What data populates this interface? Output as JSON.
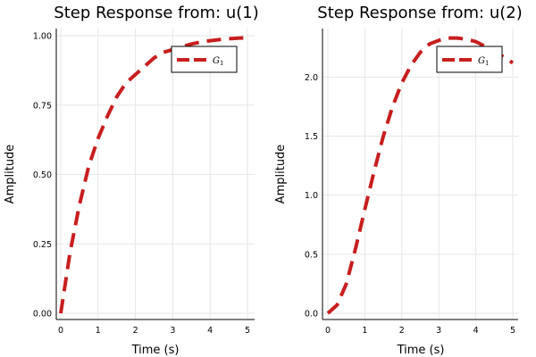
{
  "chart_data": [
    {
      "type": "line",
      "title": "Step Response from: u(1)",
      "xlabel": "Time (s)",
      "ylabel": "Amplitude",
      "xlim": [
        0,
        5
      ],
      "ylim": [
        0,
        1.0
      ],
      "xticks": [
        "0",
        "1",
        "2",
        "3",
        "4",
        "5"
      ],
      "yticks": [
        "0.00",
        "0.25",
        "0.50",
        "0.75",
        "1.00"
      ],
      "grid": true,
      "legend_position": "top-right",
      "series": [
        {
          "name": "G_1",
          "color": "#c81e1e",
          "x": [
            0,
            0.25,
            0.5,
            0.75,
            1,
            1.25,
            1.5,
            1.75,
            2,
            2.25,
            2.5,
            2.75,
            3,
            3.25,
            3.5,
            3.75,
            4,
            4.25,
            4.5,
            4.75,
            5
          ],
          "y": [
            0,
            0.22,
            0.39,
            0.53,
            0.63,
            0.71,
            0.78,
            0.83,
            0.86,
            0.89,
            0.92,
            0.94,
            0.95,
            0.96,
            0.97,
            0.977,
            0.982,
            0.986,
            0.989,
            0.991,
            0.993
          ]
        }
      ]
    },
    {
      "type": "line",
      "title": "Step Response from: u(2)",
      "xlabel": "Time (s)",
      "ylabel": "Amplitude",
      "xlim": [
        0,
        5
      ],
      "ylim": [
        0,
        2.35
      ],
      "xticks": [
        "0",
        "1",
        "2",
        "3",
        "4",
        "5"
      ],
      "yticks": [
        "0.0",
        "0.5",
        "1.0",
        "1.5",
        "2.0"
      ],
      "grid": true,
      "legend_position": "top-right",
      "series": [
        {
          "name": "G_1",
          "color": "#c81e1e",
          "x": [
            0,
            0.25,
            0.5,
            0.75,
            1,
            1.25,
            1.5,
            1.75,
            2,
            2.25,
            2.5,
            2.75,
            3,
            3.25,
            3.5,
            3.75,
            4,
            4.25,
            4.5,
            4.75,
            5
          ],
          "y": [
            0,
            0.07,
            0.25,
            0.55,
            0.88,
            1.2,
            1.5,
            1.75,
            1.95,
            2.1,
            2.21,
            2.28,
            2.31,
            2.33,
            2.33,
            2.32,
            2.3,
            2.26,
            2.22,
            2.17,
            2.12
          ]
        }
      ]
    }
  ]
}
